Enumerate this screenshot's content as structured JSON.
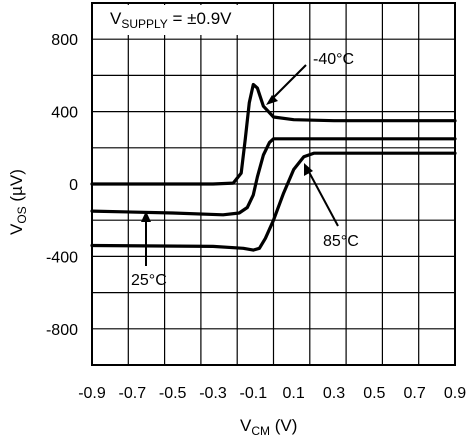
{
  "chart_data": {
    "type": "line",
    "title": "",
    "condition": {
      "main": "V",
      "sub": "SUPPLY",
      "rest": " = ±0.9V"
    },
    "xlabel": {
      "main": "V",
      "sub": "CM",
      "rest": " (V)"
    },
    "ylabel": {
      "main": "V",
      "sub": "OS",
      "rest": " (µV)"
    },
    "xlim": [
      -0.9,
      0.9
    ],
    "ylim": [
      -1000,
      1000
    ],
    "x_ticks": [
      -0.9,
      -0.7,
      -0.5,
      -0.3,
      -0.1,
      0.1,
      0.3,
      0.5,
      0.7,
      0.9
    ],
    "y_ticks": [
      800,
      400,
      0,
      -400,
      -800
    ],
    "grid": true,
    "series": [
      {
        "name": "-40°C",
        "points": [
          [
            -0.9,
            0
          ],
          [
            -0.3,
            0
          ],
          [
            -0.2,
            5
          ],
          [
            -0.16,
            60
          ],
          [
            -0.14,
            250
          ],
          [
            -0.12,
            450
          ],
          [
            -0.1,
            550
          ],
          [
            -0.08,
            530
          ],
          [
            -0.05,
            430
          ],
          [
            0.0,
            370
          ],
          [
            0.1,
            355
          ],
          [
            0.3,
            350
          ],
          [
            0.9,
            350
          ]
        ]
      },
      {
        "name": "25°C",
        "points": [
          [
            -0.9,
            -150
          ],
          [
            -0.5,
            -160
          ],
          [
            -0.25,
            -170
          ],
          [
            -0.17,
            -160
          ],
          [
            -0.13,
            -130
          ],
          [
            -0.1,
            -60
          ],
          [
            -0.08,
            40
          ],
          [
            -0.05,
            160
          ],
          [
            -0.02,
            230
          ],
          [
            0.0,
            250
          ],
          [
            0.1,
            250
          ],
          [
            0.9,
            250
          ]
        ]
      },
      {
        "name": "85°C",
        "points": [
          [
            -0.9,
            -340
          ],
          [
            -0.3,
            -345
          ],
          [
            -0.15,
            -355
          ],
          [
            -0.1,
            -365
          ],
          [
            -0.07,
            -355
          ],
          [
            -0.04,
            -300
          ],
          [
            0.0,
            -200
          ],
          [
            0.05,
            -50
          ],
          [
            0.1,
            80
          ],
          [
            0.15,
            150
          ],
          [
            0.2,
            170
          ],
          [
            0.9,
            170
          ]
        ]
      }
    ],
    "annotations": [
      {
        "text": "-40°C",
        "series": "-40°C"
      },
      {
        "text": "25°C",
        "series": "25°C"
      },
      {
        "text": "85°C",
        "series": "85°C"
      }
    ]
  }
}
